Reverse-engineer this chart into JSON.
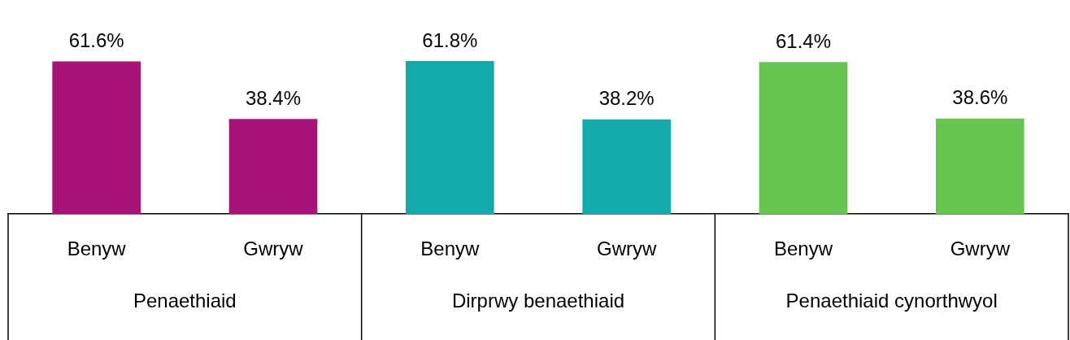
{
  "chart_data": {
    "type": "bar",
    "categories": [
      "Benyw",
      "Gwryw",
      "Benyw",
      "Gwryw",
      "Benyw",
      "Gwryw"
    ],
    "values": [
      61.6,
      38.4,
      61.8,
      38.2,
      61.4,
      38.6
    ],
    "value_labels": [
      "61.6%",
      "38.4%",
      "61.8%",
      "38.2%",
      "61.4%",
      "38.6%"
    ],
    "colors": [
      "#a71276",
      "#a71276",
      "#14a9aa",
      "#14a9aa",
      "#67c450",
      "#67c450"
    ],
    "annotations": [
      "Penaethiaid",
      "Dirprwy benaethiaid",
      "Penaethiaid cynorthwyol"
    ],
    "legend": false,
    "grid": false
  }
}
